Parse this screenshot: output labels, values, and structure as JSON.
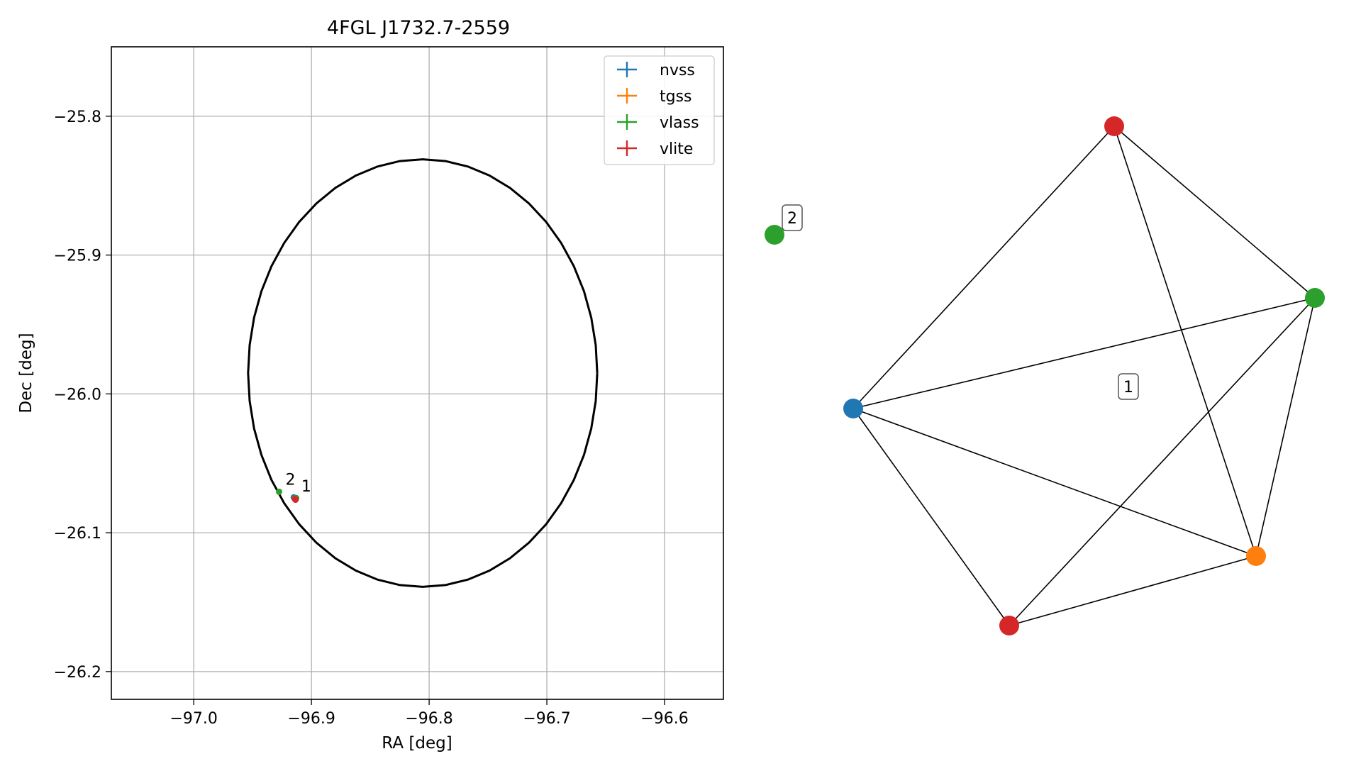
{
  "chart_data": [
    {
      "type": "scatter",
      "title": "4FGL J1732.7-2559",
      "xlabel": "RA [deg]",
      "ylabel": "Dec [deg]",
      "xlim": [
        -97.07,
        -96.55
      ],
      "ylim": [
        -26.22,
        -25.75
      ],
      "grid": true,
      "x_ticks": [
        -97.0,
        -96.9,
        -96.8,
        -96.7,
        -96.6
      ],
      "x_tick_labels": [
        "−97.0",
        "−96.9",
        "−96.8",
        "−96.7",
        "−96.6"
      ],
      "y_ticks": [
        -25.8,
        -25.9,
        -26.0,
        -26.1,
        -26.2
      ],
      "y_tick_labels": [
        "−25.8",
        "−25.9",
        "−26.0",
        "−26.1",
        "−26.2"
      ],
      "legend": {
        "location": "top-right",
        "entries": [
          {
            "name": "nvss",
            "color": "#1f77b4"
          },
          {
            "name": "tgss",
            "color": "#ff7f0e"
          },
          {
            "name": "vlass",
            "color": "#2ca02c"
          },
          {
            "name": "vlite",
            "color": "#d62728"
          }
        ]
      },
      "ellipse": {
        "center": [
          -96.8055,
          -25.985
        ],
        "semi_axis_ra": 0.1483,
        "semi_axis_dec": 0.154,
        "color": "#000000"
      },
      "series": [
        {
          "name": "nvss",
          "color": "#1f77b4",
          "points": [
            {
              "x": -96.915,
              "y": -26.0745
            }
          ]
        },
        {
          "name": "tgss",
          "color": "#ff7f0e",
          "points": [
            {
              "x": -96.914,
              "y": -26.0755
            }
          ]
        },
        {
          "name": "vlass",
          "color": "#2ca02c",
          "points": [
            {
              "x": -96.9275,
              "y": -26.0705
            },
            {
              "x": -96.913,
              "y": -26.075
            }
          ]
        },
        {
          "name": "vlite",
          "color": "#d62728",
          "points": [
            {
              "x": -96.914,
              "y": -26.0758
            },
            {
              "x": -96.9135,
              "y": -26.0762
            }
          ]
        }
      ],
      "annotations": [
        {
          "text": "2",
          "x": -96.9275,
          "y": -26.0705
        },
        {
          "text": "1",
          "x": -96.914,
          "y": -26.0755
        }
      ]
    },
    {
      "type": "network",
      "nodes": [
        {
          "id": "red-top",
          "color": "#d62728"
        },
        {
          "id": "green-right",
          "color": "#2ca02c"
        },
        {
          "id": "blue-left",
          "color": "#1f77b4"
        },
        {
          "id": "orange-bottom-right",
          "color": "#ff7f0e"
        },
        {
          "id": "red-bottom",
          "color": "#d62728"
        },
        {
          "id": "green-isolated",
          "color": "#2ca02c"
        }
      ],
      "edges": [
        [
          "blue-left",
          "red-top"
        ],
        [
          "blue-left",
          "green-right"
        ],
        [
          "blue-left",
          "orange-bottom-right"
        ],
        [
          "blue-left",
          "red-bottom"
        ],
        [
          "red-top",
          "green-right"
        ],
        [
          "red-top",
          "orange-bottom-right"
        ],
        [
          "green-right",
          "orange-bottom-right"
        ],
        [
          "green-right",
          "red-bottom"
        ],
        [
          "orange-bottom-right",
          "red-bottom"
        ]
      ],
      "group_labels": [
        {
          "text": "1",
          "group": "main-cluster"
        },
        {
          "text": "2",
          "group": "isolated"
        }
      ]
    }
  ]
}
